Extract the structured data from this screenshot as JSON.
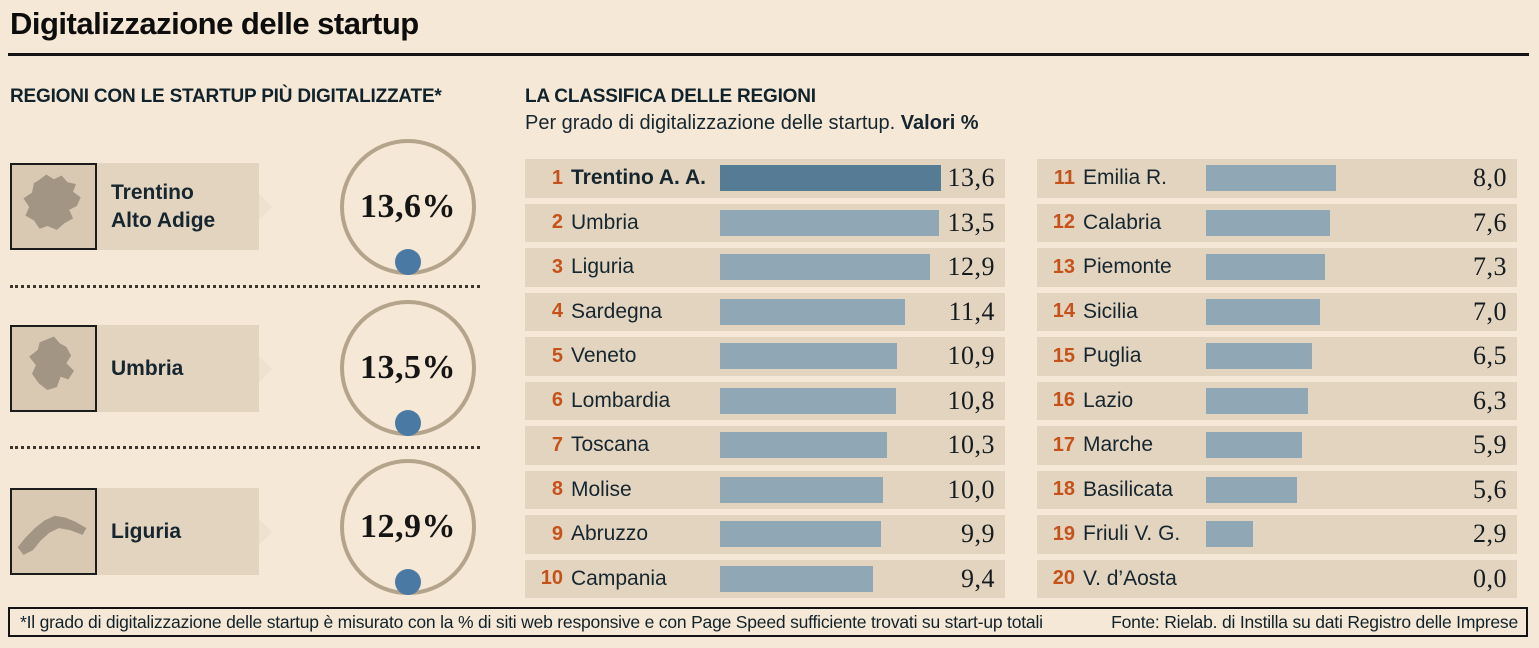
{
  "title": "Digitalizzazione delle startup",
  "featured": {
    "heading": "REGIONI CON LE STARTUP PIÙ DIGITALIZZATE*",
    "items": [
      {
        "name_lines": [
          "Trentino",
          "Alto Adige"
        ],
        "value": "13,6%",
        "map_icon": "trentino-alto-adige-map-icon"
      },
      {
        "name_lines": [
          "Umbria"
        ],
        "value": "13,5%",
        "map_icon": "umbria-map-icon"
      },
      {
        "name_lines": [
          "Liguria"
        ],
        "value": "12,9%",
        "map_icon": "liguria-map-icon"
      }
    ]
  },
  "ranking": {
    "heading": "LA CLASSIFICA DELLE REGIONI",
    "subtitle": "Per grado di digitalizzazione delle startup. ",
    "subtitle_bold": "Valori %",
    "columns": [
      {
        "rows": [
          {
            "rank": "1",
            "name": "Trentino A. A.",
            "value": 13.6,
            "label": "13,6",
            "highlight": true
          },
          {
            "rank": "2",
            "name": "Umbria",
            "value": 13.5,
            "label": "13,5"
          },
          {
            "rank": "3",
            "name": "Liguria",
            "value": 12.9,
            "label": "12,9"
          },
          {
            "rank": "4",
            "name": "Sardegna",
            "value": 11.4,
            "label": "11,4"
          },
          {
            "rank": "5",
            "name": "Veneto",
            "value": 10.9,
            "label": "10,9"
          },
          {
            "rank": "6",
            "name": "Lombardia",
            "value": 10.8,
            "label": "10,8"
          },
          {
            "rank": "7",
            "name": "Toscana",
            "value": 10.3,
            "label": "10,3"
          },
          {
            "rank": "8",
            "name": "Molise",
            "value": 10.0,
            "label": "10,0"
          },
          {
            "rank": "9",
            "name": "Abruzzo",
            "value": 9.9,
            "label": "9,9"
          },
          {
            "rank": "10",
            "name": "Campania",
            "value": 9.4,
            "label": "9,4"
          }
        ]
      },
      {
        "rows": [
          {
            "rank": "11",
            "name": "Emilia R.",
            "value": 8.0,
            "label": "8,0"
          },
          {
            "rank": "12",
            "name": "Calabria",
            "value": 7.6,
            "label": "7,6"
          },
          {
            "rank": "13",
            "name": "Piemonte",
            "value": 7.3,
            "label": "7,3"
          },
          {
            "rank": "14",
            "name": "Sicilia",
            "value": 7.0,
            "label": "7,0"
          },
          {
            "rank": "15",
            "name": "Puglia",
            "value": 6.5,
            "label": "6,5"
          },
          {
            "rank": "16",
            "name": "Lazio",
            "value": 6.3,
            "label": "6,3"
          },
          {
            "rank": "17",
            "name": "Marche",
            "value": 5.9,
            "label": "5,9"
          },
          {
            "rank": "18",
            "name": "Basilicata",
            "value": 5.6,
            "label": "5,6"
          },
          {
            "rank": "19",
            "name": "Friuli V. G.",
            "value": 2.9,
            "label": "2,9"
          },
          {
            "rank": "20",
            "name": "V. d’Aosta",
            "value": 0.0,
            "label": "0,0"
          }
        ]
      }
    ]
  },
  "chart_data": {
    "type": "bar",
    "orientation": "horizontal",
    "title": "LA CLASSIFICA DELLE REGIONI",
    "subtitle": "Per grado di digitalizzazione delle startup. Valori %",
    "categories": [
      "Trentino A. A.",
      "Umbria",
      "Liguria",
      "Sardegna",
      "Veneto",
      "Lombardia",
      "Toscana",
      "Molise",
      "Abruzzo",
      "Campania",
      "Emilia R.",
      "Calabria",
      "Piemonte",
      "Sicilia",
      "Puglia",
      "Lazio",
      "Marche",
      "Basilicata",
      "Friuli V. G.",
      "V. d’Aosta"
    ],
    "values": [
      13.6,
      13.5,
      12.9,
      11.4,
      10.9,
      10.8,
      10.3,
      10.0,
      9.9,
      9.4,
      8.0,
      7.6,
      7.3,
      7.0,
      6.5,
      6.3,
      5.9,
      5.6,
      2.9,
      0.0
    ],
    "value_labels": [
      "13,6",
      "13,5",
      "12,9",
      "11,4",
      "10,9",
      "10,8",
      "10,3",
      "10,0",
      "9,9",
      "9,4",
      "8,0",
      "7,6",
      "7,3",
      "7,0",
      "6,5",
      "6,3",
      "5,9",
      "5,6",
      "2,9",
      "0,0"
    ],
    "xlim": [
      0,
      13.6
    ],
    "grid": false,
    "legend": false,
    "highlight_category": "Trentino A. A."
  },
  "footer": {
    "note": "*Il grado di digitalizzazione delle startup è misurato con la % di siti web responsive e con Page Speed sufficiente trovati su start-up totali",
    "source": "Fonte: Rielab. di Instilla su dati Registro delle Imprese"
  },
  "colors": {
    "background": "#f6e8d6",
    "band": "#e3d4c0",
    "bar": "#90a7b5",
    "bar_highlight": "#567b95",
    "rank_number": "#c4521a",
    "text": "#16262f",
    "circle_stroke": "#b5a48c",
    "dot": "#4a7aa3",
    "map_bg": "#d9c8b2",
    "map_shape": "#a39584"
  }
}
